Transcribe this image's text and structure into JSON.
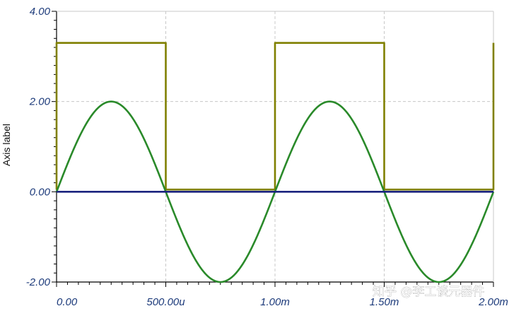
{
  "chart_data": {
    "type": "line",
    "ylabel": "Axis label",
    "xlabel": "",
    "xlim": [
      0,
      0.002
    ],
    "ylim": [
      -2,
      4
    ],
    "x_tick_values": [
      0,
      0.0005,
      0.001,
      0.0015,
      0.002
    ],
    "x_tick_labels": [
      "0.00",
      "500.00u",
      "1.00m",
      "1.50m",
      "2.00m"
    ],
    "y_tick_values": [
      -2,
      0,
      2,
      4
    ],
    "y_tick_labels": [
      "-2.00",
      "0.00",
      "2.00",
      "4.00"
    ],
    "grid": true,
    "series": [
      {
        "color": "#808000",
        "x": [
          0,
          0,
          0.0005,
          0.0005,
          0.001,
          0.001,
          0.0015,
          0.0015,
          0.002,
          0.002
        ],
        "y": [
          0.05,
          3.3,
          3.3,
          0.05,
          0.05,
          3.3,
          3.3,
          0.05,
          0.05,
          3.3
        ]
      },
      {
        "color": "#2a8a2a",
        "function": "2*sin(2*pi*1000*t)",
        "amplitude": 2,
        "frequency_hz": 1000
      },
      {
        "color": "#1a237e",
        "x": [
          0,
          0.002
        ],
        "y": [
          0,
          0
        ]
      }
    ]
  },
  "watermark": "知乎 @李工谈元器件",
  "colors": {
    "grid": "#c8c8c8",
    "axis": "#000000",
    "tick_text": "#1c3a7a"
  }
}
